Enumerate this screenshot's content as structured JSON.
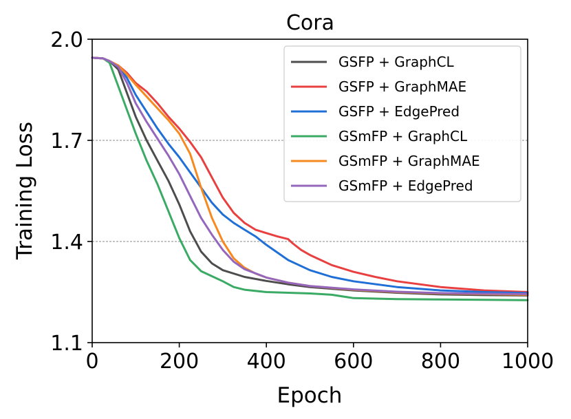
{
  "chart_data": {
    "type": "line",
    "title": "Cora",
    "xlabel": "Epoch",
    "ylabel": "Training Loss",
    "xlim": [
      0,
      1000
    ],
    "ylim": [
      1.1,
      2.0
    ],
    "xticks": [
      0,
      200,
      400,
      600,
      800,
      1000
    ],
    "xtick_labels": [
      "0",
      "200",
      "400",
      "600",
      "800",
      "1000"
    ],
    "yticks": [
      1.1,
      1.4,
      1.7,
      2.0
    ],
    "ytick_labels": [
      "1.1",
      "1.4",
      "1.7",
      "2.0"
    ],
    "gridlines_y": [
      1.4,
      1.7
    ],
    "legend_position": "top-right",
    "series": [
      {
        "name": "GSFP + GraphCL",
        "color": "#4d4d4d",
        "x": [
          0,
          25,
          40,
          60,
          80,
          100,
          125,
          150,
          175,
          200,
          225,
          250,
          275,
          300,
          350,
          400,
          450,
          500,
          600,
          700,
          800,
          900,
          1000
        ],
        "y": [
          1.945,
          1.943,
          1.935,
          1.91,
          1.84,
          1.77,
          1.7,
          1.64,
          1.58,
          1.51,
          1.43,
          1.37,
          1.335,
          1.315,
          1.295,
          1.283,
          1.273,
          1.265,
          1.255,
          1.248,
          1.243,
          1.241,
          1.24
        ]
      },
      {
        "name": "GSFP + GraphMAE",
        "color": "#e84040",
        "x": [
          0,
          25,
          40,
          60,
          80,
          100,
          125,
          150,
          175,
          200,
          225,
          250,
          275,
          300,
          325,
          350,
          375,
          400,
          425,
          450,
          460,
          480,
          500,
          550,
          600,
          650,
          700,
          800,
          900,
          1000
        ],
        "y": [
          1.945,
          1.943,
          1.935,
          1.922,
          1.9,
          1.87,
          1.845,
          1.81,
          1.77,
          1.735,
          1.695,
          1.65,
          1.59,
          1.53,
          1.485,
          1.455,
          1.435,
          1.425,
          1.415,
          1.407,
          1.395,
          1.375,
          1.36,
          1.33,
          1.31,
          1.295,
          1.282,
          1.265,
          1.255,
          1.25
        ]
      },
      {
        "name": "GSFP + EdgePred",
        "color": "#1f6fd6",
        "x": [
          0,
          25,
          40,
          60,
          80,
          100,
          125,
          150,
          175,
          200,
          225,
          250,
          275,
          300,
          325,
          350,
          375,
          400,
          450,
          500,
          550,
          600,
          700,
          800,
          900,
          1000
        ],
        "y": [
          1.945,
          1.943,
          1.935,
          1.92,
          1.885,
          1.835,
          1.785,
          1.735,
          1.69,
          1.65,
          1.605,
          1.56,
          1.515,
          1.48,
          1.455,
          1.435,
          1.415,
          1.39,
          1.345,
          1.315,
          1.295,
          1.282,
          1.265,
          1.255,
          1.25,
          1.247
        ]
      },
      {
        "name": "GSmFP + GraphCL",
        "color": "#3aaa64",
        "x": [
          0,
          25,
          40,
          60,
          80,
          100,
          125,
          150,
          175,
          200,
          225,
          250,
          275,
          300,
          325,
          350,
          400,
          450,
          500,
          550,
          600,
          700,
          800,
          900,
          1000
        ],
        "y": [
          1.945,
          1.943,
          1.93,
          1.86,
          1.79,
          1.72,
          1.64,
          1.57,
          1.49,
          1.41,
          1.345,
          1.312,
          1.297,
          1.282,
          1.265,
          1.257,
          1.25,
          1.248,
          1.246,
          1.242,
          1.232,
          1.229,
          1.228,
          1.227,
          1.226
        ]
      },
      {
        "name": "GSmFP + GraphMAE",
        "color": "#f6891f",
        "x": [
          0,
          25,
          40,
          60,
          80,
          100,
          125,
          150,
          175,
          200,
          225,
          250,
          275,
          300,
          325,
          350,
          375,
          400,
          450,
          500,
          600,
          700,
          800,
          900,
          1000
        ],
        "y": [
          1.945,
          1.943,
          1.935,
          1.922,
          1.895,
          1.865,
          1.83,
          1.795,
          1.76,
          1.72,
          1.66,
          1.56,
          1.47,
          1.4,
          1.35,
          1.322,
          1.305,
          1.293,
          1.278,
          1.268,
          1.257,
          1.25,
          1.246,
          1.244,
          1.242
        ]
      },
      {
        "name": "GSmFP + EdgePred",
        "color": "#9467bd",
        "x": [
          0,
          25,
          40,
          60,
          80,
          100,
          125,
          150,
          175,
          200,
          225,
          250,
          275,
          300,
          325,
          350,
          400,
          450,
          500,
          600,
          700,
          800,
          900,
          1000
        ],
        "y": [
          1.945,
          1.943,
          1.935,
          1.918,
          1.87,
          1.81,
          1.755,
          1.705,
          1.655,
          1.6,
          1.535,
          1.47,
          1.42,
          1.375,
          1.34,
          1.318,
          1.293,
          1.278,
          1.268,
          1.258,
          1.251,
          1.247,
          1.245,
          1.244
        ]
      }
    ]
  }
}
